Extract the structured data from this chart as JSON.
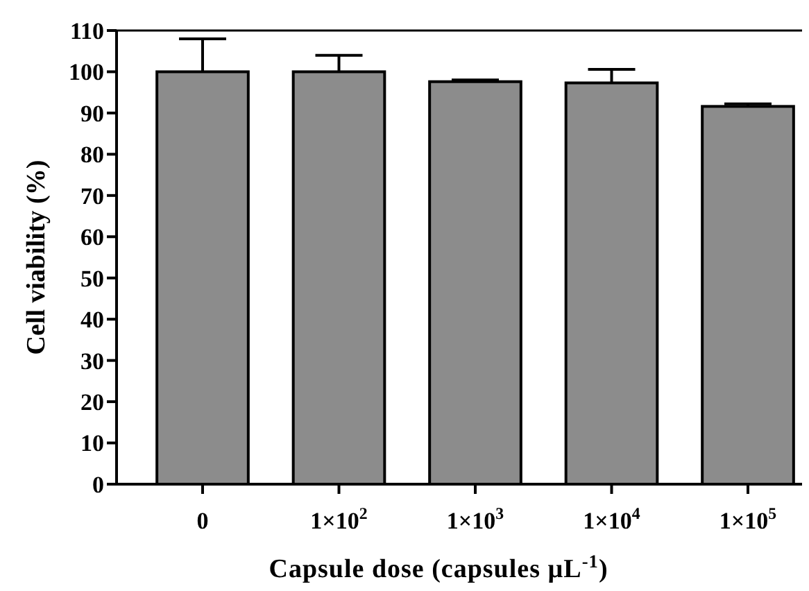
{
  "chart_data": {
    "type": "bar",
    "xlabel": "Capsule dose (capsules µL$^{-1}$)",
    "ylabel": "Cell viability (%)",
    "categories": [
      "0",
      "1×10$^{2}$",
      "1×10$^{3}$",
      "1×10$^{4}$",
      "1×10$^{5}$"
    ],
    "values": [
      100,
      100,
      97.6,
      97.3,
      91.6
    ],
    "errors": [
      [
        100,
        108
      ],
      [
        100,
        104
      ],
      [
        97.6,
        98
      ],
      [
        97.3,
        100.6
      ],
      [
        91.6,
        92.2
      ]
    ],
    "color": "#8c8c8c",
    "ylim": [
      0,
      110
    ],
    "yticks": [
      0,
      10,
      20,
      30,
      40,
      50,
      60,
      70,
      80,
      90,
      100,
      110
    ],
    "grid": false
  }
}
